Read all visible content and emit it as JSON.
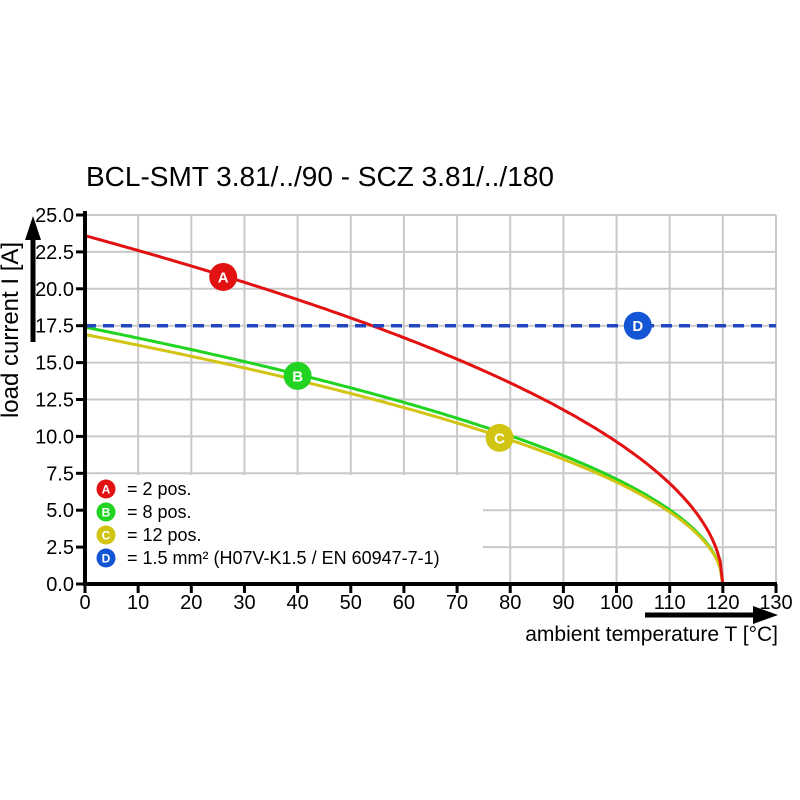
{
  "title": "BCL-SMT 3.81/../90 - SCZ 3.81/../180",
  "colors": {
    "red": "#e31212",
    "green": "#21d421",
    "yellow": "#d2c413",
    "blue": "#1355d4",
    "blue_line": "#2447bf",
    "grid": "#c9c9c9",
    "axis": "#000000",
    "background": "#ffffff"
  },
  "chart_data": {
    "type": "line",
    "title": "BCL-SMT 3.81/../90 - SCZ 3.81/../180",
    "xlabel": "ambient temperature T [°C]",
    "ylabel": "load current I [A]",
    "xlim": [
      0,
      130
    ],
    "ylim": [
      0,
      25
    ],
    "grid": true,
    "legend_position": "bottom-left-inside",
    "x_ticks": [
      "0",
      "10",
      "20",
      "30",
      "40",
      "50",
      "60",
      "70",
      "80",
      "90",
      "100",
      "110",
      "120",
      "130"
    ],
    "y_ticks": [
      "0.0",
      "2.5",
      "5.0",
      "7.5",
      "10.0",
      "12.5",
      "15.0",
      "17.5",
      "20.0",
      "22.5",
      "25.0"
    ],
    "x": [
      0,
      10,
      20,
      30,
      40,
      50,
      60,
      70,
      80,
      90,
      100,
      110,
      115,
      120
    ],
    "series": [
      {
        "id": "A",
        "label": "2 pos.",
        "legend_label": "= 2 pos.",
        "color_key": "red",
        "shape": "sqrt-derating",
        "I0": 23.6,
        "T_end": 120,
        "values": [
          23.6,
          22.6,
          21.5,
          20.4,
          19.3,
          18.0,
          16.7,
          15.2,
          13.6,
          11.8,
          9.6,
          6.8,
          4.8,
          0.0
        ],
        "marker": {
          "T": 26,
          "I": 20.8
        }
      },
      {
        "id": "B",
        "label": "8 pos.",
        "legend_label": "= 8 pos.",
        "color_key": "green",
        "shape": "sqrt-derating",
        "I0": 17.4,
        "T_end": 120,
        "values": [
          17.4,
          16.7,
          15.9,
          15.1,
          14.2,
          13.3,
          12.3,
          11.2,
          10.0,
          8.7,
          7.1,
          5.0,
          3.6,
          0.0
        ],
        "marker": {
          "T": 40,
          "I": 14.1
        }
      },
      {
        "id": "C",
        "label": "12 pos.",
        "legend_label": "= 12 pos.",
        "color_key": "yellow",
        "shape": "sqrt-derating",
        "I0": 16.9,
        "T_end": 120,
        "values": [
          16.9,
          16.2,
          15.4,
          14.6,
          13.8,
          12.9,
          12.0,
          10.9,
          9.8,
          8.5,
          6.9,
          4.9,
          3.4,
          0.0
        ],
        "marker": {
          "T": 78,
          "I": 9.9
        }
      },
      {
        "id": "D",
        "label": "1.5 mm² (H07V-K1.5 / EN 60947-7-1)",
        "legend_label": "= 1.5 mm² (H07V-K1.5 / EN 60947-7-1)",
        "color_key": "blue_line",
        "marker_color_key": "blue",
        "shape": "constant-dashed",
        "constant": 17.5,
        "x_range": [
          0,
          130
        ],
        "marker": {
          "T": 104,
          "I": 17.5
        }
      }
    ]
  }
}
